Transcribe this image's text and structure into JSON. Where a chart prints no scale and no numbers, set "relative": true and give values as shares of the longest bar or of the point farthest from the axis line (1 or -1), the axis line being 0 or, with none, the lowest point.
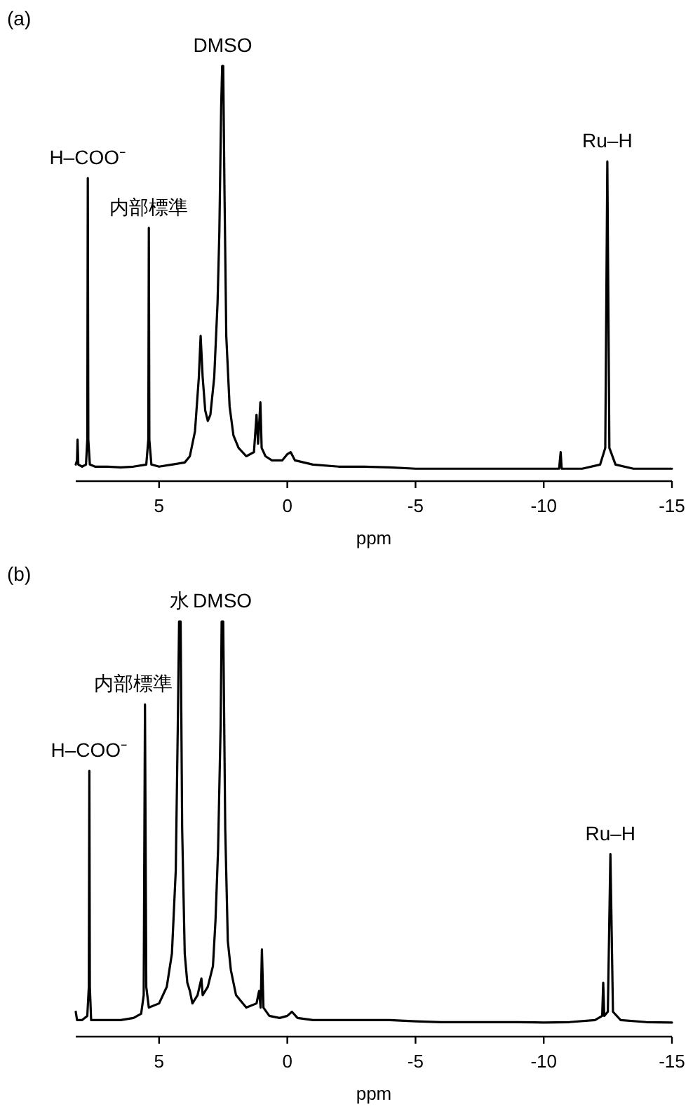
{
  "chart_data": [
    {
      "type": "line",
      "title": "(a)",
      "xlabel": "ppm",
      "relative": true,
      "tick_labels": "x",
      "xlim": [
        8.25,
        -15
      ],
      "xticks": [
        5,
        0,
        -5,
        -10,
        -15
      ],
      "x": [
        8.25,
        8.2,
        8.18,
        8.15,
        8.0,
        7.85,
        7.8,
        7.78,
        7.76,
        7.7,
        7.5,
        7.0,
        6.5,
        6.0,
        5.5,
        5.42,
        5.4,
        5.38,
        5.3,
        5.0,
        4.5,
        4.0,
        3.8,
        3.6,
        3.45,
        3.38,
        3.3,
        3.2,
        3.1,
        3.0,
        2.85,
        2.72,
        2.65,
        2.58,
        2.54,
        2.5,
        2.45,
        2.38,
        2.25,
        2.1,
        1.9,
        1.6,
        1.3,
        1.2,
        1.14,
        1.05,
        1.0,
        0.85,
        0.6,
        0.2,
        0,
        -0.13,
        -0.3,
        -1,
        -2,
        -3,
        -4,
        -5,
        -6,
        -7,
        -8,
        -9,
        -10,
        -10.6,
        -10.66,
        -10.7,
        -11.5,
        -12.2,
        -12.4,
        -12.48,
        -12.56,
        -12.8,
        -13.5,
        -14,
        -15
      ],
      "series": [
        {
          "color": "#000000",
          "values": [
            0.04,
            0.05,
            0.1,
            0.04,
            0.035,
            0.04,
            0.1,
            0.73,
            0.1,
            0.04,
            0.035,
            0.035,
            0.033,
            0.035,
            0.04,
            0.1,
            0.61,
            0.1,
            0.04,
            0.035,
            0.04,
            0.045,
            0.06,
            0.12,
            0.25,
            0.35,
            0.25,
            0.17,
            0.145,
            0.16,
            0.25,
            0.43,
            0.6,
            0.9,
            1.0,
            1.0,
            0.7,
            0.35,
            0.18,
            0.11,
            0.08,
            0.06,
            0.07,
            0.16,
            0.09,
            0.19,
            0.08,
            0.06,
            0.05,
            0.05,
            0.065,
            0.07,
            0.05,
            0.04,
            0.035,
            0.035,
            0.033,
            0.03,
            0.03,
            0.03,
            0.03,
            0.03,
            0.03,
            0.03,
            0.07,
            0.03,
            0.03,
            0.04,
            0.08,
            0.77,
            0.08,
            0.04,
            0.03,
            0.03,
            0.03
          ]
        }
      ],
      "annotations": [
        {
          "text": "H–COO⁻",
          "x": 7.78,
          "y": 0.73
        },
        {
          "text": "内部標準",
          "x": 5.4,
          "y": 0.61
        },
        {
          "text": "DMSO",
          "x": 2.52,
          "y": 1
        },
        {
          "text": "Ru–H",
          "x": -12.48,
          "y": 0.77
        }
      ]
    },
    {
      "type": "line",
      "title": "(b)",
      "xlabel": "ppm",
      "relative": true,
      "tick_labels": "x",
      "xlim": [
        8.25,
        -15
      ],
      "xticks": [
        5,
        0,
        -5,
        -10,
        -15
      ],
      "x": [
        8.25,
        8.2,
        8.0,
        7.8,
        7.74,
        7.72,
        7.7,
        7.65,
        7.0,
        6.5,
        6.0,
        5.7,
        5.6,
        5.55,
        5.5,
        5.4,
        5.0,
        4.7,
        4.5,
        4.35,
        4.27,
        4.22,
        4.16,
        4.1,
        4.0,
        3.9,
        3.8,
        3.7,
        3.5,
        3.35,
        3.3,
        3.1,
        2.9,
        2.8,
        2.7,
        2.6,
        2.56,
        2.5,
        2.42,
        2.32,
        2.2,
        2.0,
        1.6,
        1.2,
        1.1,
        1.04,
        0.99,
        0.93,
        0.7,
        0.3,
        0,
        -0.18,
        -0.4,
        -1,
        -2,
        -3,
        -4,
        -5,
        -6,
        -7,
        -8,
        -9,
        -10,
        -11,
        -12,
        -12.28,
        -12.32,
        -12.36,
        -12.5,
        -12.6,
        -12.7,
        -13,
        -14,
        -15
      ],
      "series": [
        {
          "color": "#000000",
          "values": [
            0.06,
            0.04,
            0.04,
            0.05,
            0.12,
            0.64,
            0.12,
            0.04,
            0.04,
            0.04,
            0.045,
            0.055,
            0.1,
            0.8,
            0.12,
            0.07,
            0.08,
            0.12,
            0.2,
            0.4,
            0.75,
            1.0,
            1.0,
            0.5,
            0.2,
            0.13,
            0.11,
            0.08,
            0.1,
            0.14,
            0.1,
            0.12,
            0.17,
            0.28,
            0.45,
            0.75,
            1.0,
            1.0,
            0.5,
            0.23,
            0.16,
            0.1,
            0.07,
            0.08,
            0.11,
            0.07,
            0.21,
            0.07,
            0.05,
            0.045,
            0.05,
            0.06,
            0.045,
            0.04,
            0.04,
            0.04,
            0.04,
            0.037,
            0.035,
            0.035,
            0.035,
            0.035,
            0.034,
            0.035,
            0.04,
            0.05,
            0.13,
            0.05,
            0.06,
            0.44,
            0.06,
            0.04,
            0.035,
            0.034
          ]
        }
      ],
      "annotations": [
        {
          "text": "H–COO⁻",
          "x": 7.72,
          "y": 0.64
        },
        {
          "text": "内部標準",
          "x": 5.55,
          "y": 0.8
        },
        {
          "text": "水",
          "x": 4.19,
          "y": 1
        },
        {
          "text": "DMSO",
          "x": 2.53,
          "y": 1
        },
        {
          "text": "Ru–H",
          "x": -12.6,
          "y": 0.44
        }
      ]
    }
  ]
}
